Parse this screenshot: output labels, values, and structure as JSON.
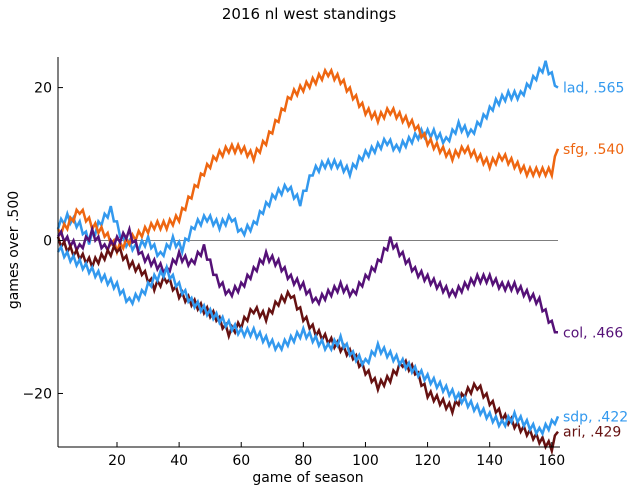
{
  "chart_data": {
    "type": "line",
    "title": "2016 nl west standings",
    "xlabel": "game of season",
    "ylabel": "games over .500",
    "xlim": [
      1,
      162
    ],
    "ylim": [
      -27,
      24
    ],
    "xticks": [
      20,
      40,
      60,
      80,
      100,
      120,
      140,
      160
    ],
    "yticks": [
      -20,
      0,
      20
    ],
    "grid": false,
    "zero_line": true,
    "series": [
      {
        "label": "lad, .565",
        "color": "#3399ee",
        "x": [
          1,
          4,
          8,
          11,
          14,
          18,
          22,
          26,
          30,
          34,
          38,
          41,
          45,
          49,
          53,
          57,
          60,
          64,
          67,
          71,
          75,
          79,
          83,
          87,
          91,
          95,
          99,
          103,
          107,
          110,
          114,
          118,
          122,
          126,
          130,
          134,
          138,
          142,
          146,
          150,
          154,
          158,
          162
        ],
        "y": [
          2,
          3,
          2,
          0,
          2,
          4,
          0,
          -1,
          0,
          -2,
          0,
          -1,
          2,
          3,
          2,
          3,
          1,
          2,
          4,
          6,
          7,
          5,
          9,
          10,
          10,
          9,
          11,
          12,
          13,
          12,
          13,
          14,
          14,
          13,
          15,
          14,
          16,
          18,
          19,
          19,
          21,
          23,
          20
        ]
      },
      {
        "label": "sfg, .540",
        "color": "#ee6611",
        "x": [
          1,
          4,
          8,
          12,
          16,
          20,
          24,
          28,
          32,
          36,
          40,
          44,
          48,
          52,
          56,
          60,
          64,
          68,
          72,
          76,
          80,
          84,
          88,
          92,
          96,
          100,
          104,
          108,
          112,
          116,
          120,
          124,
          128,
          132,
          136,
          140,
          144,
          148,
          152,
          156,
          160,
          162
        ],
        "y": [
          1,
          2,
          4,
          2,
          1,
          -1,
          0,
          1,
          2,
          2,
          3,
          6,
          9,
          11,
          12,
          12,
          11,
          13,
          16,
          19,
          20,
          21,
          22,
          21,
          19,
          17,
          16,
          17,
          16,
          15,
          13,
          12,
          11,
          12,
          11,
          10,
          11,
          10,
          9,
          9,
          9,
          12
        ]
      },
      {
        "label": "col, .466",
        "color": "#551177",
        "x": [
          1,
          4,
          8,
          12,
          16,
          20,
          24,
          28,
          32,
          36,
          40,
          44,
          48,
          52,
          56,
          60,
          64,
          68,
          72,
          76,
          80,
          84,
          88,
          92,
          96,
          100,
          104,
          108,
          112,
          116,
          120,
          124,
          128,
          132,
          136,
          140,
          144,
          148,
          152,
          156,
          160,
          162
        ],
        "y": [
          1,
          0,
          -1,
          1,
          -1,
          0,
          1,
          -2,
          -3,
          -4,
          -2,
          -3,
          -1,
          -5,
          -7,
          -6,
          -4,
          -2,
          -3,
          -5,
          -6,
          -8,
          -7,
          -6,
          -7,
          -5,
          -3,
          0,
          -2,
          -4,
          -5,
          -6,
          -7,
          -6,
          -5,
          -5,
          -6,
          -6,
          -7,
          -8,
          -11,
          -12
        ]
      },
      {
        "label": "ari, .429",
        "color": "#661111",
        "x": [
          1,
          4,
          8,
          12,
          16,
          20,
          24,
          28,
          32,
          36,
          40,
          44,
          48,
          52,
          56,
          60,
          64,
          68,
          72,
          76,
          80,
          84,
          88,
          92,
          96,
          100,
          104,
          108,
          112,
          116,
          120,
          124,
          128,
          132,
          136,
          140,
          144,
          148,
          152,
          156,
          160,
          162
        ],
        "y": [
          0,
          -1,
          -2,
          -3,
          -2,
          -1,
          -3,
          -4,
          -6,
          -5,
          -7,
          -8,
          -9,
          -10,
          -12,
          -11,
          -9,
          -10,
          -8,
          -7,
          -10,
          -12,
          -13,
          -14,
          -15,
          -17,
          -19,
          -18,
          -16,
          -17,
          -20,
          -21,
          -22,
          -20,
          -19,
          -21,
          -23,
          -24,
          -25,
          -26,
          -27,
          -25
        ]
      },
      {
        "label": "sdp, .422",
        "color": "#3399ee",
        "x": [
          1,
          4,
          8,
          12,
          16,
          20,
          24,
          28,
          32,
          36,
          40,
          44,
          48,
          52,
          56,
          60,
          64,
          68,
          72,
          76,
          80,
          84,
          88,
          92,
          96,
          100,
          104,
          108,
          112,
          116,
          120,
          124,
          128,
          132,
          136,
          140,
          144,
          148,
          152,
          156,
          160,
          162
        ],
        "y": [
          -1,
          -2,
          -3,
          -4,
          -5,
          -6,
          -8,
          -7,
          -5,
          -4,
          -6,
          -8,
          -9,
          -10,
          -11,
          -12,
          -12,
          -13,
          -14,
          -13,
          -12,
          -13,
          -14,
          -13,
          -15,
          -16,
          -14,
          -15,
          -16,
          -17,
          -18,
          -19,
          -20,
          -21,
          -22,
          -23,
          -24,
          -23,
          -24,
          -25,
          -24,
          -23
        ]
      }
    ]
  }
}
